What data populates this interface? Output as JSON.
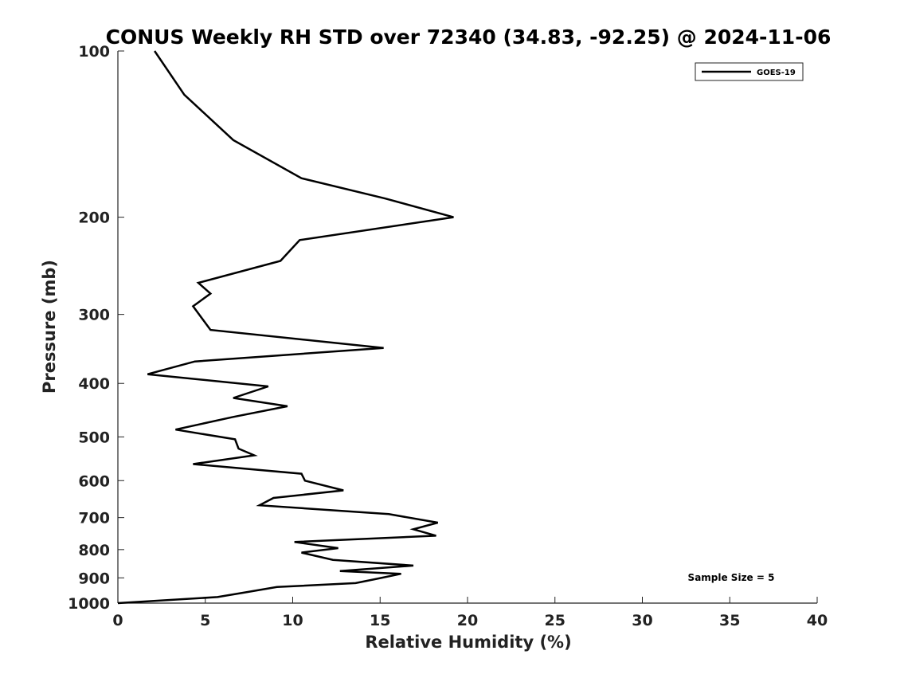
{
  "chart_data": {
    "type": "line",
    "title": "CONUS Weekly RH STD over 72340 (34.83, -92.25) @ 2024-11-06",
    "xlabel": "Relative Humidity (%)",
    "ylabel": "Pressure (mb)",
    "xlim": [
      0,
      40
    ],
    "ylim": [
      100,
      1000
    ],
    "y_scale": "log",
    "y_direction": "reversed",
    "x_ticks": [
      0,
      5,
      10,
      15,
      20,
      25,
      30,
      35,
      40
    ],
    "y_ticks": [
      100,
      200,
      300,
      400,
      500,
      600,
      700,
      800,
      900,
      1000
    ],
    "grid": false,
    "legend_position": "top-right",
    "series": [
      {
        "name": "GOES-19",
        "color": "#000000",
        "x": [
          2.1,
          3.8,
          6.6,
          10.5,
          15.3,
          19.2,
          10.4,
          9.3,
          4.6,
          5.3,
          4.3,
          5.3,
          15.2,
          4.4,
          1.7,
          8.6,
          6.6,
          9.7,
          6.6,
          3.3,
          6.7,
          6.9,
          7.8,
          4.3,
          10.5,
          10.7,
          12.9,
          8.9,
          8.1,
          15.5,
          18.3,
          16.9,
          18.2,
          10.1,
          12.6,
          10.5,
          12.3,
          16.9,
          12.7,
          16.2,
          14.7,
          13.6,
          9.1,
          7.4,
          5.7,
          0.0
        ],
        "y": [
          100,
          120,
          145,
          170,
          185,
          200,
          220,
          240,
          263,
          275,
          290,
          320,
          345,
          365,
          385,
          405,
          425,
          440,
          460,
          485,
          505,
          525,
          540,
          560,
          583,
          600,
          625,
          645,
          665,
          690,
          715,
          735,
          755,
          775,
          795,
          810,
          835,
          855,
          875,
          885,
          905,
          920,
          935,
          955,
          975,
          1000
        ]
      }
    ],
    "annotation": "Sample Size = 5"
  }
}
